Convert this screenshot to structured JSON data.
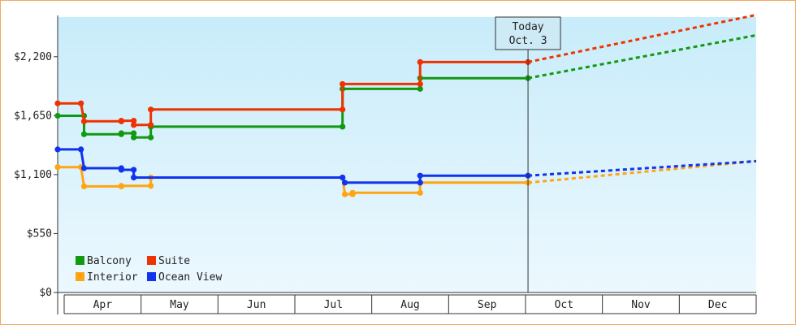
{
  "chart_data": {
    "type": "line",
    "title": "",
    "xlabel": "",
    "ylabel": "",
    "ylim": [
      0,
      2570
    ],
    "yticks": [
      0,
      550,
      1100,
      1650,
      2200
    ],
    "ytick_labels": [
      "$0",
      "$550",
      "$1,100",
      "$1,650",
      "$2,200"
    ],
    "x_unit": "month index (0 = start of Apr)",
    "xlim": [
      0,
      9
    ],
    "month_labels": [
      "Apr",
      "May",
      "Jun",
      "Jul",
      "Aug",
      "Sep",
      "Oct",
      "Nov",
      "Dec"
    ],
    "today": {
      "line1": "Today",
      "line2": "Oct. 3",
      "x": 6.06
    },
    "legend_position": "bottom-left",
    "grid": false,
    "step": true,
    "series": [
      {
        "name": "Balcony",
        "color": "#119911",
        "points": [
          [
            0,
            1649
          ],
          [
            0.34,
            1649
          ],
          [
            0.34,
            1477
          ],
          [
            0.82,
            1477
          ],
          [
            0.82,
            1486
          ],
          [
            0.98,
            1486
          ],
          [
            0.98,
            1447
          ],
          [
            1.2,
            1447
          ],
          [
            1.2,
            1547
          ],
          [
            3.67,
            1547
          ],
          [
            3.67,
            1900
          ],
          [
            4.67,
            1900
          ],
          [
            4.67,
            2000
          ],
          [
            6.06,
            2000
          ]
        ],
        "forecast": [
          [
            6.06,
            2000
          ],
          [
            9.0,
            2400
          ]
        ]
      },
      {
        "name": "Suite",
        "color": "#ee3300",
        "points": [
          [
            0,
            1765
          ],
          [
            0.3,
            1765
          ],
          [
            0.34,
            1597
          ],
          [
            0.82,
            1597
          ],
          [
            0.82,
            1603
          ],
          [
            0.98,
            1603
          ],
          [
            0.98,
            1563
          ],
          [
            1.2,
            1563
          ],
          [
            1.2,
            1707
          ],
          [
            3.67,
            1707
          ],
          [
            3.67,
            1945
          ],
          [
            4.67,
            1945
          ],
          [
            4.67,
            2150
          ],
          [
            6.06,
            2150
          ]
        ],
        "forecast": [
          [
            6.06,
            2150
          ],
          [
            9.0,
            2590
          ]
        ]
      },
      {
        "name": "Interior",
        "color": "#ffa511",
        "points": [
          [
            0,
            1170
          ],
          [
            0.3,
            1170
          ],
          [
            0.34,
            990
          ],
          [
            0.82,
            990
          ],
          [
            0.82,
            995
          ],
          [
            1.2,
            995
          ],
          [
            1.2,
            1073
          ],
          [
            3.67,
            1073
          ],
          [
            3.7,
            917
          ],
          [
            3.8,
            917
          ],
          [
            3.8,
            930
          ],
          [
            4.67,
            930
          ],
          [
            4.67,
            1025
          ],
          [
            6.06,
            1025
          ]
        ],
        "forecast": [
          [
            6.06,
            1025
          ],
          [
            9.0,
            1225
          ]
        ]
      },
      {
        "name": "Ocean View",
        "color": "#1133ee",
        "points": [
          [
            0,
            1335
          ],
          [
            0.3,
            1335
          ],
          [
            0.34,
            1160
          ],
          [
            0.82,
            1160
          ],
          [
            0.82,
            1145
          ],
          [
            0.98,
            1145
          ],
          [
            0.98,
            1073
          ],
          [
            3.67,
            1073
          ],
          [
            3.7,
            1025
          ],
          [
            4.67,
            1025
          ],
          [
            4.67,
            1090
          ],
          [
            6.06,
            1090
          ]
        ],
        "forecast": [
          [
            6.06,
            1090
          ],
          [
            9.0,
            1225
          ]
        ]
      }
    ]
  }
}
